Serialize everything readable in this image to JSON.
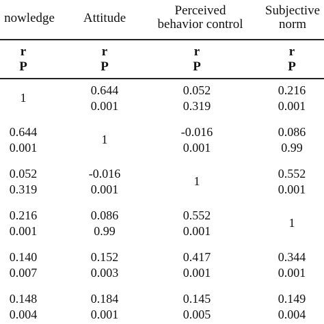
{
  "header": {
    "col1": "nowledge",
    "col2": "Attitude",
    "col3_line1": "Perceived",
    "col3_line2": "behavior control",
    "col4_line1": "Subjective",
    "col4_line2": "norm"
  },
  "subheader": {
    "r": "r",
    "p": "P"
  },
  "rows": [
    {
      "c1": [
        "1"
      ],
      "c2": [
        "0.644",
        "0.001"
      ],
      "c3": [
        "0.052",
        "0.319"
      ],
      "c4": [
        "0.216",
        "0.001"
      ]
    },
    {
      "c1": [
        "0.644",
        "0.001"
      ],
      "c2": [
        "1"
      ],
      "c3": [
        "-0.016",
        "0.001"
      ],
      "c4": [
        "0.086",
        "0.99"
      ]
    },
    {
      "c1": [
        "0.052",
        "0.319"
      ],
      "c2": [
        "-0.016",
        "0.001"
      ],
      "c3": [
        "1"
      ],
      "c4": [
        "0.552",
        "0.001"
      ]
    },
    {
      "c1": [
        "0.216",
        "0.001"
      ],
      "c2": [
        "0.086",
        "0.99"
      ],
      "c3": [
        "0.552",
        "0.001"
      ],
      "c4": [
        "1"
      ]
    },
    {
      "c1": [
        "0.140",
        "0.007"
      ],
      "c2": [
        "0.152",
        "0.003"
      ],
      "c3": [
        "0.417",
        "0.001"
      ],
      "c4": [
        "0.344",
        "0.001"
      ]
    },
    {
      "c1": [
        "0.148",
        "0.004"
      ],
      "c2": [
        "0.184",
        "0.001"
      ],
      "c3": [
        "0.145",
        "0.005"
      ],
      "c4": [
        "0.149",
        "0.004"
      ]
    }
  ]
}
